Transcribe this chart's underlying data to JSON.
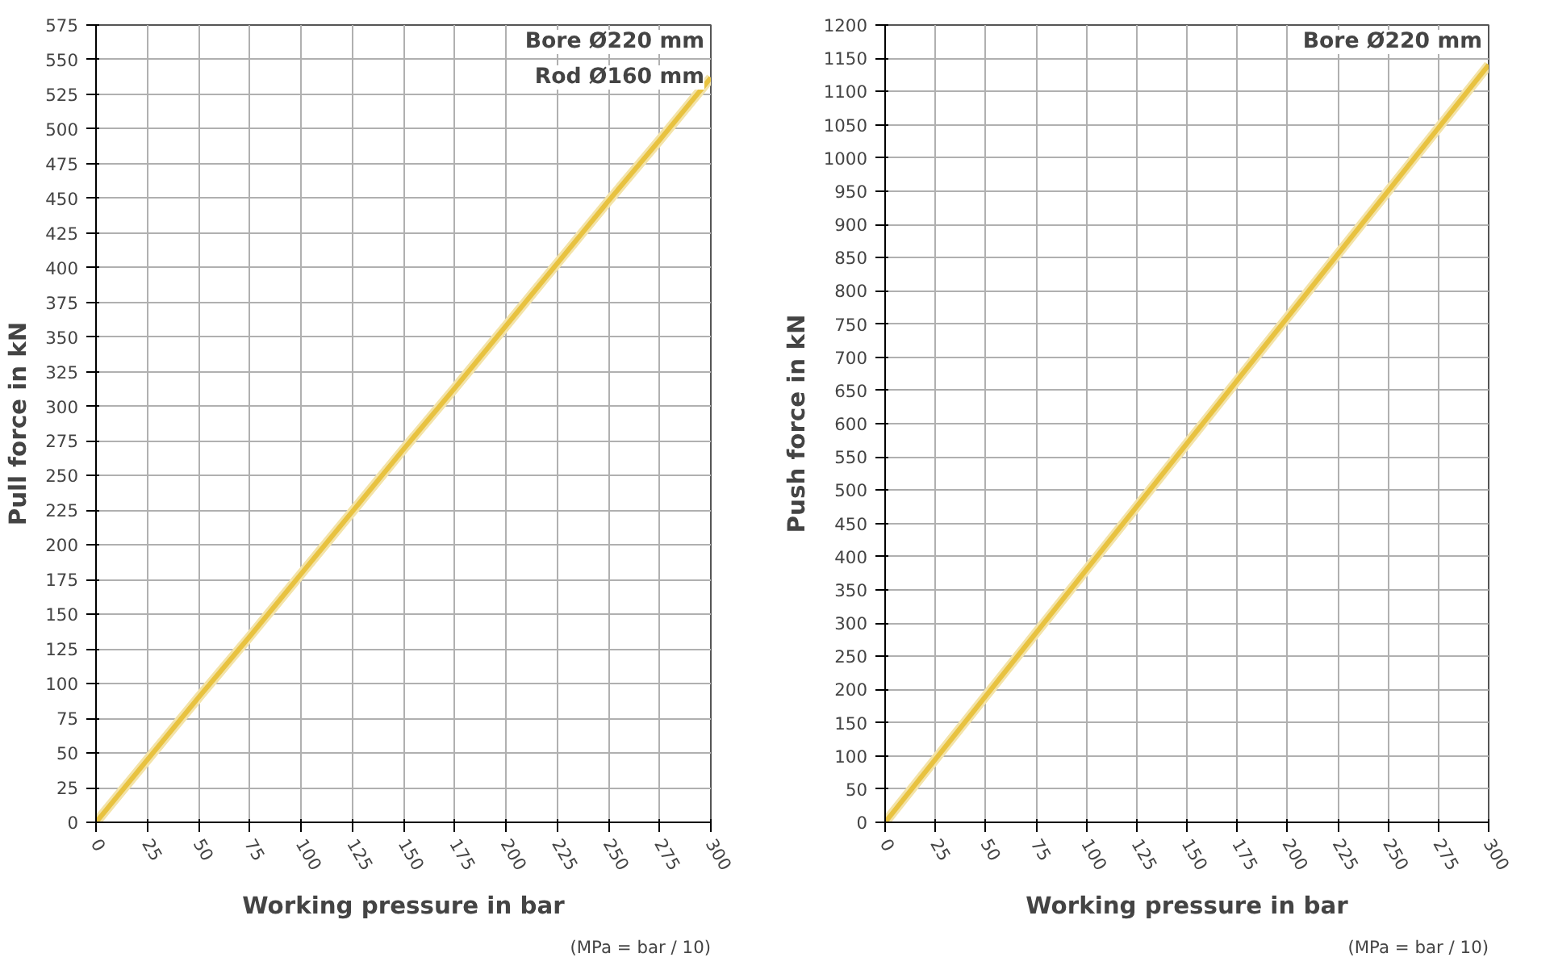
{
  "chart_data": [
    {
      "type": "line",
      "ylabel": "Pull force in kN",
      "xlabel": "Working pressure in bar",
      "annotations": [
        "Bore Ø220 mm",
        "Rod Ø160 mm",
        "(MPa = bar / 10)"
      ],
      "x": [
        0,
        25,
        50,
        75,
        100,
        125,
        150,
        175,
        200,
        225,
        250,
        275,
        300
      ],
      "series": [
        {
          "color": "#e8c240",
          "values": [
            0,
            45,
            90,
            134,
            179,
            224,
            269,
            313,
            358,
            403,
            448,
            492,
            537
          ]
        }
      ],
      "xlim": [
        0,
        300
      ],
      "xticks": [
        0,
        25,
        50,
        75,
        100,
        125,
        150,
        175,
        200,
        225,
        250,
        275,
        300
      ],
      "ylim": [
        0,
        575
      ],
      "yticks": [
        0,
        25,
        50,
        75,
        100,
        125,
        150,
        175,
        200,
        225,
        250,
        275,
        300,
        325,
        350,
        375,
        400,
        425,
        450,
        475,
        500,
        525,
        550,
        575
      ],
      "grid": true
    },
    {
      "type": "line",
      "ylabel": "Push force in kN",
      "xlabel": "Working pressure in bar",
      "annotations": [
        "Bore Ø220 mm",
        "(MPa = bar / 10)"
      ],
      "x": [
        0,
        25,
        50,
        75,
        100,
        125,
        150,
        175,
        200,
        225,
        250,
        275,
        300
      ],
      "series": [
        {
          "color": "#e8c240",
          "values": [
            0,
            95,
            190,
            285,
            380,
            475,
            570,
            665,
            760,
            855,
            950,
            1045,
            1140
          ]
        }
      ],
      "xlim": [
        0,
        300
      ],
      "xticks": [
        0,
        25,
        50,
        75,
        100,
        125,
        150,
        175,
        200,
        225,
        250,
        275,
        300
      ],
      "ylim": [
        0,
        1200
      ],
      "yticks": [
        0,
        50,
        100,
        150,
        200,
        250,
        300,
        350,
        400,
        450,
        500,
        550,
        600,
        650,
        700,
        750,
        800,
        850,
        900,
        950,
        1000,
        1050,
        1100,
        1150,
        1200
      ],
      "grid": true
    }
  ]
}
